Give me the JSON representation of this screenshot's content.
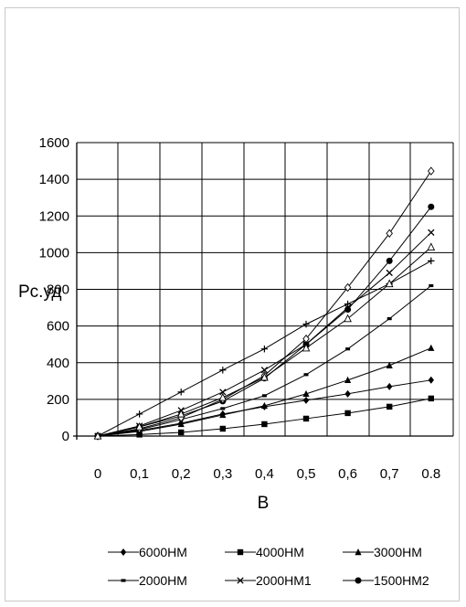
{
  "chart_data": {
    "type": "line",
    "xlabel": "B",
    "ylabel": "Pc.уд",
    "categories": [
      "0",
      "0,1",
      "0,2",
      "0,3",
      "0,4",
      "0,5",
      "0,6",
      "0,7",
      "0.8"
    ],
    "ylim": [
      0,
      1600
    ],
    "yticks": [
      0,
      200,
      400,
      600,
      800,
      1000,
      1200,
      1400,
      1600
    ],
    "grid": true,
    "legend_position": "bottom",
    "series": [
      {
        "name": "6000HM",
        "marker": "diamond",
        "values": [
          0,
          30,
          70,
          120,
          160,
          195,
          230,
          270,
          305
        ]
      },
      {
        "name": "4000HM",
        "marker": "square",
        "values": [
          0,
          8,
          20,
          40,
          65,
          95,
          125,
          160,
          205
        ]
      },
      {
        "name": "3000HM",
        "marker": "triangle",
        "values": [
          0,
          25,
          65,
          115,
          165,
          230,
          305,
          385,
          480
        ]
      },
      {
        "name": "2000HM",
        "marker": "dash",
        "values": [
          0,
          35,
          90,
          150,
          220,
          335,
          475,
          640,
          820
        ]
      },
      {
        "name": "2000HM1",
        "marker": "x",
        "values": [
          0,
          55,
          140,
          240,
          360,
          500,
          700,
          890,
          1110
        ]
      },
      {
        "name": "1500HM2",
        "marker": "circle",
        "values": [
          0,
          50,
          110,
          190,
          315,
          500,
          690,
          955,
          1250
        ]
      },
      {
        "name": "",
        "marker": "open-diamond",
        "values": [
          0,
          40,
          100,
          200,
          330,
          530,
          810,
          1105,
          1445
        ]
      },
      {
        "name": "",
        "marker": "plus",
        "values": [
          0,
          120,
          240,
          360,
          475,
          610,
          720,
          830,
          955
        ]
      },
      {
        "name": "",
        "marker": "open-triangle",
        "values": [
          0,
          50,
          120,
          210,
          320,
          480,
          640,
          830,
          1030
        ]
      }
    ]
  }
}
